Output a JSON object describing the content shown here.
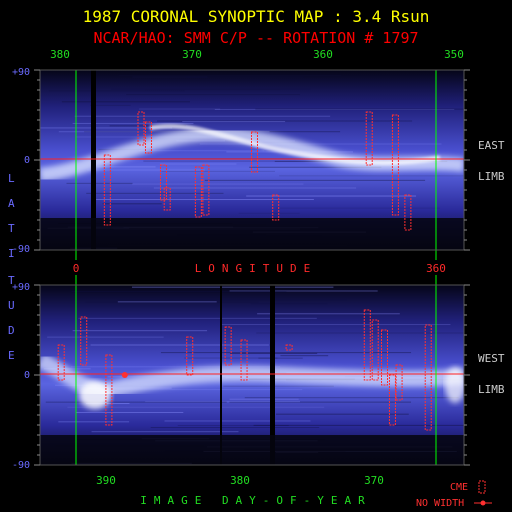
{
  "header": {
    "title": "1987 CORONAL SYNOPTIC MAP : 3.4 Rsun",
    "subtitle": "NCAR/HAO: SMM C/P -- ROTATION # 1797"
  },
  "colors": {
    "background": "#000000",
    "title": "#ffff00",
    "subtitle": "#ff0000",
    "axis_text": "#ff2a2a",
    "doy_text": "#22dd22",
    "lat_text": "#6a6aff",
    "marker": "#00ff00",
    "equator": "#ff2020",
    "cme": "#ff3030",
    "field_low": "#0a0a30",
    "field_high": "#ffffff"
  },
  "side_labels": {
    "latitude_letters": [
      "L",
      "A",
      "T",
      "I",
      "T",
      "U",
      "D",
      "E"
    ],
    "east": "EAST",
    "west": "WEST",
    "limb": "LIMB"
  },
  "chart_data": [
    {
      "type": "heatmap",
      "panel": "east",
      "title": "EAST LIMB",
      "xlabel": "LONGITUDE",
      "x_top_ticks": [
        "380",
        "370",
        "360",
        "350"
      ],
      "x_bottom_ticks": [
        "0",
        "360"
      ],
      "y_tick_labels": [
        "+90",
        "0",
        "-90"
      ],
      "ylim": [
        -90,
        90
      ],
      "longitude_markers": [
        0,
        360
      ],
      "bright_band": {
        "description": "streamer belt near equator",
        "lat_center": 0
      },
      "cme_markers": [
        {
          "day": 376.6,
          "lat_top": 5,
          "lat_bottom": -65
        },
        {
          "day": 373.9,
          "lat_top": 48,
          "lat_bottom": 15
        },
        {
          "day": 373.3,
          "lat_top": 38,
          "lat_bottom": 7
        },
        {
          "day": 372.1,
          "lat_top": -5,
          "lat_bottom": -40
        },
        {
          "day": 371.8,
          "lat_top": -28,
          "lat_bottom": -50
        },
        {
          "day": 369.3,
          "lat_top": -7,
          "lat_bottom": -57
        },
        {
          "day": 368.7,
          "lat_top": -5,
          "lat_bottom": -55
        },
        {
          "day": 364.8,
          "lat_top": 28,
          "lat_bottom": -12
        },
        {
          "day": 363.1,
          "lat_top": -35,
          "lat_bottom": -60
        },
        {
          "day": 355.6,
          "lat_top": 48,
          "lat_bottom": -5
        },
        {
          "day": 353.5,
          "lat_top": 45,
          "lat_bottom": -55
        },
        {
          "day": 352.5,
          "lat_top": -35,
          "lat_bottom": -70
        }
      ]
    },
    {
      "type": "heatmap",
      "panel": "west",
      "title": "WEST LIMB",
      "xlabel": "IMAGE DAY-OF-YEAR",
      "x_bottom_ticks": [
        "390",
        "380",
        "370"
      ],
      "y_tick_labels": [
        "+90",
        "0",
        "-90"
      ],
      "ylim": [
        -90,
        90
      ],
      "bright_band": {
        "description": "streamer belt near equator",
        "lat_center": 0
      },
      "cme_markers": [
        {
          "day": 394.4,
          "lat_top": 30,
          "lat_bottom": -5
        },
        {
          "day": 392.7,
          "lat_top": 58,
          "lat_bottom": 10
        },
        {
          "day": 390.8,
          "lat_top": 20,
          "lat_bottom": -50
        },
        {
          "day": 384.7,
          "lat_top": 38,
          "lat_bottom": 0
        },
        {
          "day": 381.8,
          "lat_top": 48,
          "lat_bottom": 10
        },
        {
          "day": 380.6,
          "lat_top": 35,
          "lat_bottom": -5
        },
        {
          "day": 377.2,
          "lat_top": 30,
          "lat_bottom": 25
        },
        {
          "day": 371.3,
          "lat_top": 65,
          "lat_bottom": -5
        },
        {
          "day": 370.7,
          "lat_top": 55,
          "lat_bottom": -5
        },
        {
          "day": 370.0,
          "lat_top": 45,
          "lat_bottom": -10
        },
        {
          "day": 369.4,
          "lat_top": 0,
          "lat_bottom": -50
        },
        {
          "day": 368.9,
          "lat_top": 10,
          "lat_bottom": -25
        },
        {
          "day": 366.7,
          "lat_top": 50,
          "lat_bottom": -55
        }
      ],
      "no_width_markers": [
        {
          "day": 389.6,
          "lat": 0
        }
      ]
    }
  ],
  "legend": {
    "cme": "CME",
    "no_width": "NO WIDTH"
  }
}
